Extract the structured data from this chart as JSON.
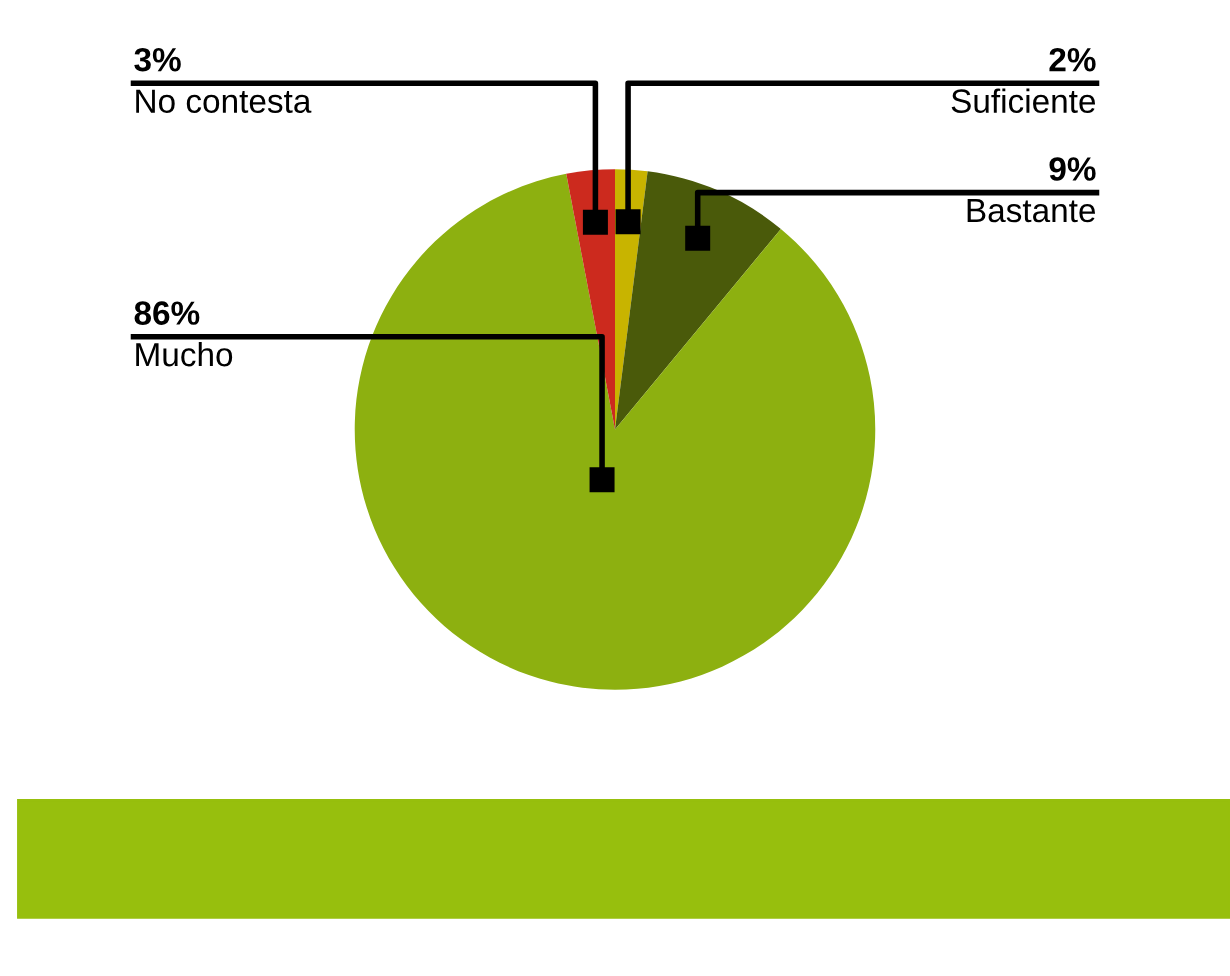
{
  "chart_data": {
    "type": "pie",
    "categories": [
      "Suficiente",
      "Bastante",
      "Mucho",
      "No contesta"
    ],
    "values": [
      2,
      9,
      86,
      3
    ],
    "value_labels": [
      "2%",
      "9%",
      "86%",
      "3%"
    ],
    "colors": [
      "#c8b400",
      "#4a5a0a",
      "#8db010",
      "#cc2a1e"
    ]
  }
}
